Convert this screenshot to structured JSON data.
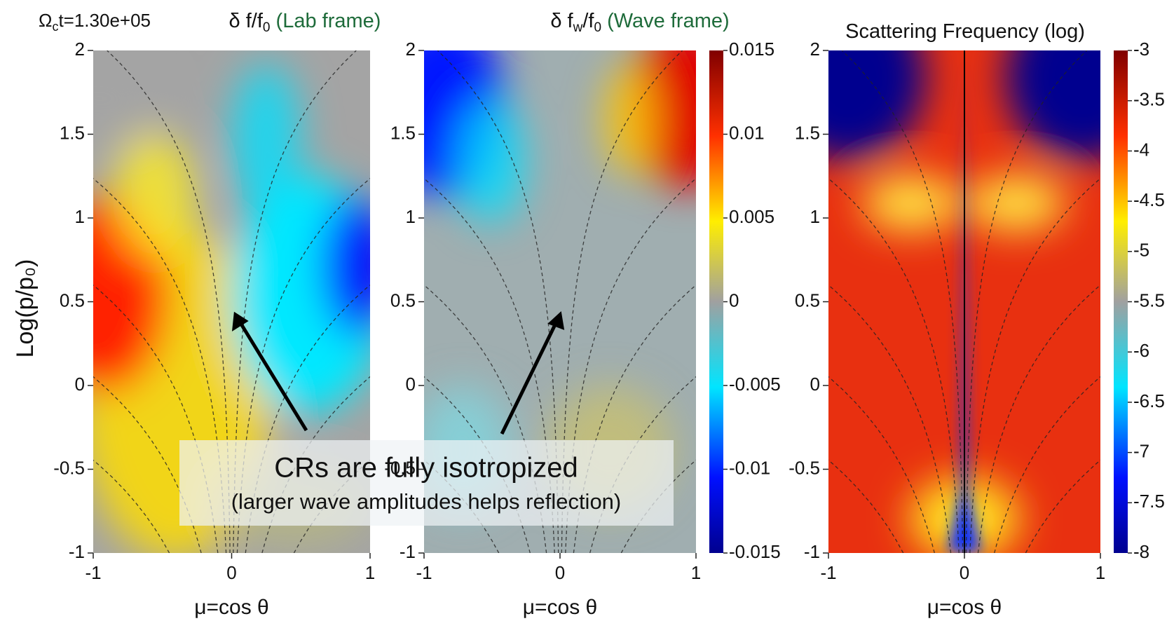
{
  "time_label": [
    {
      "text": "Ω"
    },
    {
      "text": "c",
      "sub": true
    },
    {
      "text": "t=1.30e+05"
    }
  ],
  "y_label": "Log(p/p₀)",
  "annotation": {
    "title": "CRs are fully isotropized",
    "subtitle": "(larger wave amplitudes helps reflection)"
  },
  "chart_data": [
    {
      "type": "heatmap",
      "title": [
        {
          "text": "δ f/f"
        },
        {
          "text": "0",
          "sub": true
        },
        {
          "text": " (Lab frame)",
          "color": "#1e6b3a"
        }
      ],
      "x_label": "μ=cos θ",
      "xlim": [
        -1,
        1
      ],
      "xticks": [
        -1,
        0,
        1
      ],
      "ylim": [
        -1,
        2
      ],
      "yticks": [
        -1,
        -0.5,
        0,
        0.5,
        1,
        1.5,
        2
      ]
    },
    {
      "type": "heatmap",
      "title": [
        {
          "text": "δ f"
        },
        {
          "text": "w",
          "sub": true
        },
        {
          "text": "/f"
        },
        {
          "text": "0",
          "sub": true
        },
        {
          "text": " (Wave frame)",
          "color": "#1e6b3a"
        }
      ],
      "x_label": "μ=cos θ",
      "xlim": [
        -1,
        1
      ],
      "xticks": [
        -1,
        0,
        1
      ],
      "ylim": [
        -1,
        2
      ],
      "yticks": [
        -1,
        -0.5,
        0,
        0.5,
        1,
        1.5,
        2
      ],
      "clim": [
        -0.015,
        0.015
      ],
      "cticks": [
        -0.015,
        -0.01,
        -0.005,
        0,
        0.005,
        0.01,
        0.015
      ]
    },
    {
      "type": "heatmap",
      "title": [
        {
          "text": "Scattering Frequency (log)"
        }
      ],
      "x_label": "μ=cos θ",
      "xlim": [
        -1,
        1
      ],
      "xticks": [
        -1,
        0,
        1
      ],
      "ylim": [
        -1,
        2
      ],
      "yticks": [
        -1,
        -0.5,
        0,
        0.5,
        1,
        1.5,
        2
      ],
      "clim": [
        -8,
        -3
      ],
      "cticks": [
        -8,
        -7.5,
        -7,
        -6.5,
        -6,
        -5.5,
        -5,
        -4.5,
        -4,
        -3.5,
        -3
      ]
    }
  ]
}
